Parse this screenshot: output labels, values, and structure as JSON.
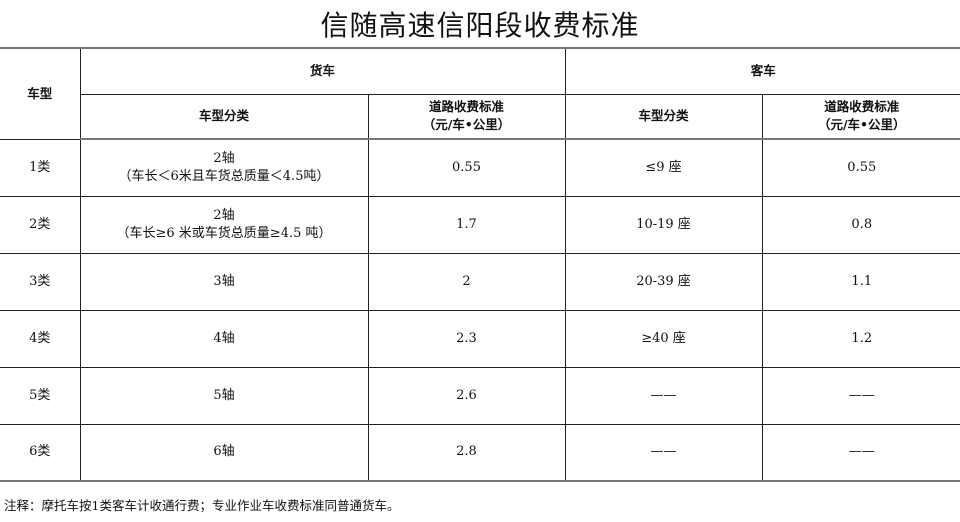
{
  "title": "信随高速信阳段收费标准",
  "header": {
    "vehicle_type": "车型",
    "truck": "货车",
    "bus": "客车",
    "truck_class": "车型分类",
    "truck_rate": "道路收费标准",
    "truck_rate_unit": "（元/车•公里）",
    "bus_class": "车型分类",
    "bus_rate": "道路收费标准",
    "bus_rate_unit": "（元/车•公里）"
  },
  "rows": [
    {
      "type": "1类",
      "truck_class": "2轴",
      "truck_note": "（车长＜6米且车货总质量＜4.5吨）",
      "truck_rate": "0.55",
      "bus_class": "≤9 座",
      "bus_rate": "0.55"
    },
    {
      "type": "2类",
      "truck_class": "2轴",
      "truck_note": "（车长≥6 米或车货总质量≥4.5 吨）",
      "truck_rate": "1.7",
      "bus_class": "10-19 座",
      "bus_rate": "0.8"
    },
    {
      "type": "3类",
      "truck_class": "3轴",
      "truck_note": "",
      "truck_rate": "2",
      "bus_class": "20-39 座",
      "bus_rate": "1.1"
    },
    {
      "type": "4类",
      "truck_class": "4轴",
      "truck_note": "",
      "truck_rate": "2.3",
      "bus_class": "≥40 座",
      "bus_rate": "1.2"
    },
    {
      "type": "5类",
      "truck_class": "5轴",
      "truck_note": "",
      "truck_rate": "2.6",
      "bus_class": "——",
      "bus_rate": "——"
    },
    {
      "type": "6类",
      "truck_class": "6轴",
      "truck_note": "",
      "truck_rate": "2.8",
      "bus_class": "——",
      "bus_rate": "——"
    }
  ],
  "note": "注释：摩托车按1类客车计收通行费；专业作业车收费标准同普通货车。"
}
